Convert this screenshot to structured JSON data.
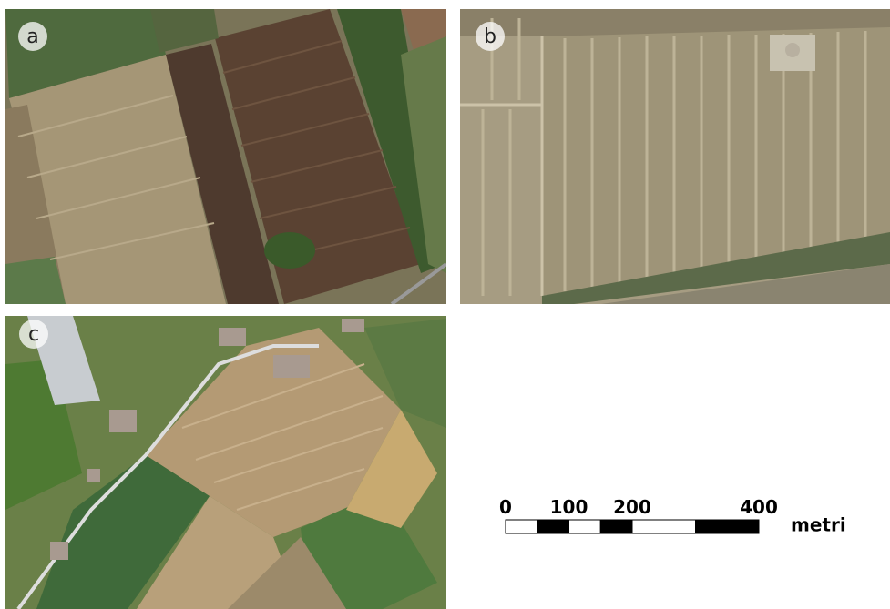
{
  "panels": [
    {
      "label": "a"
    },
    {
      "label": "b"
    },
    {
      "label": "c"
    }
  ],
  "scale_bar": {
    "ticks": [
      0,
      100,
      200,
      400
    ],
    "unit": "metri"
  }
}
